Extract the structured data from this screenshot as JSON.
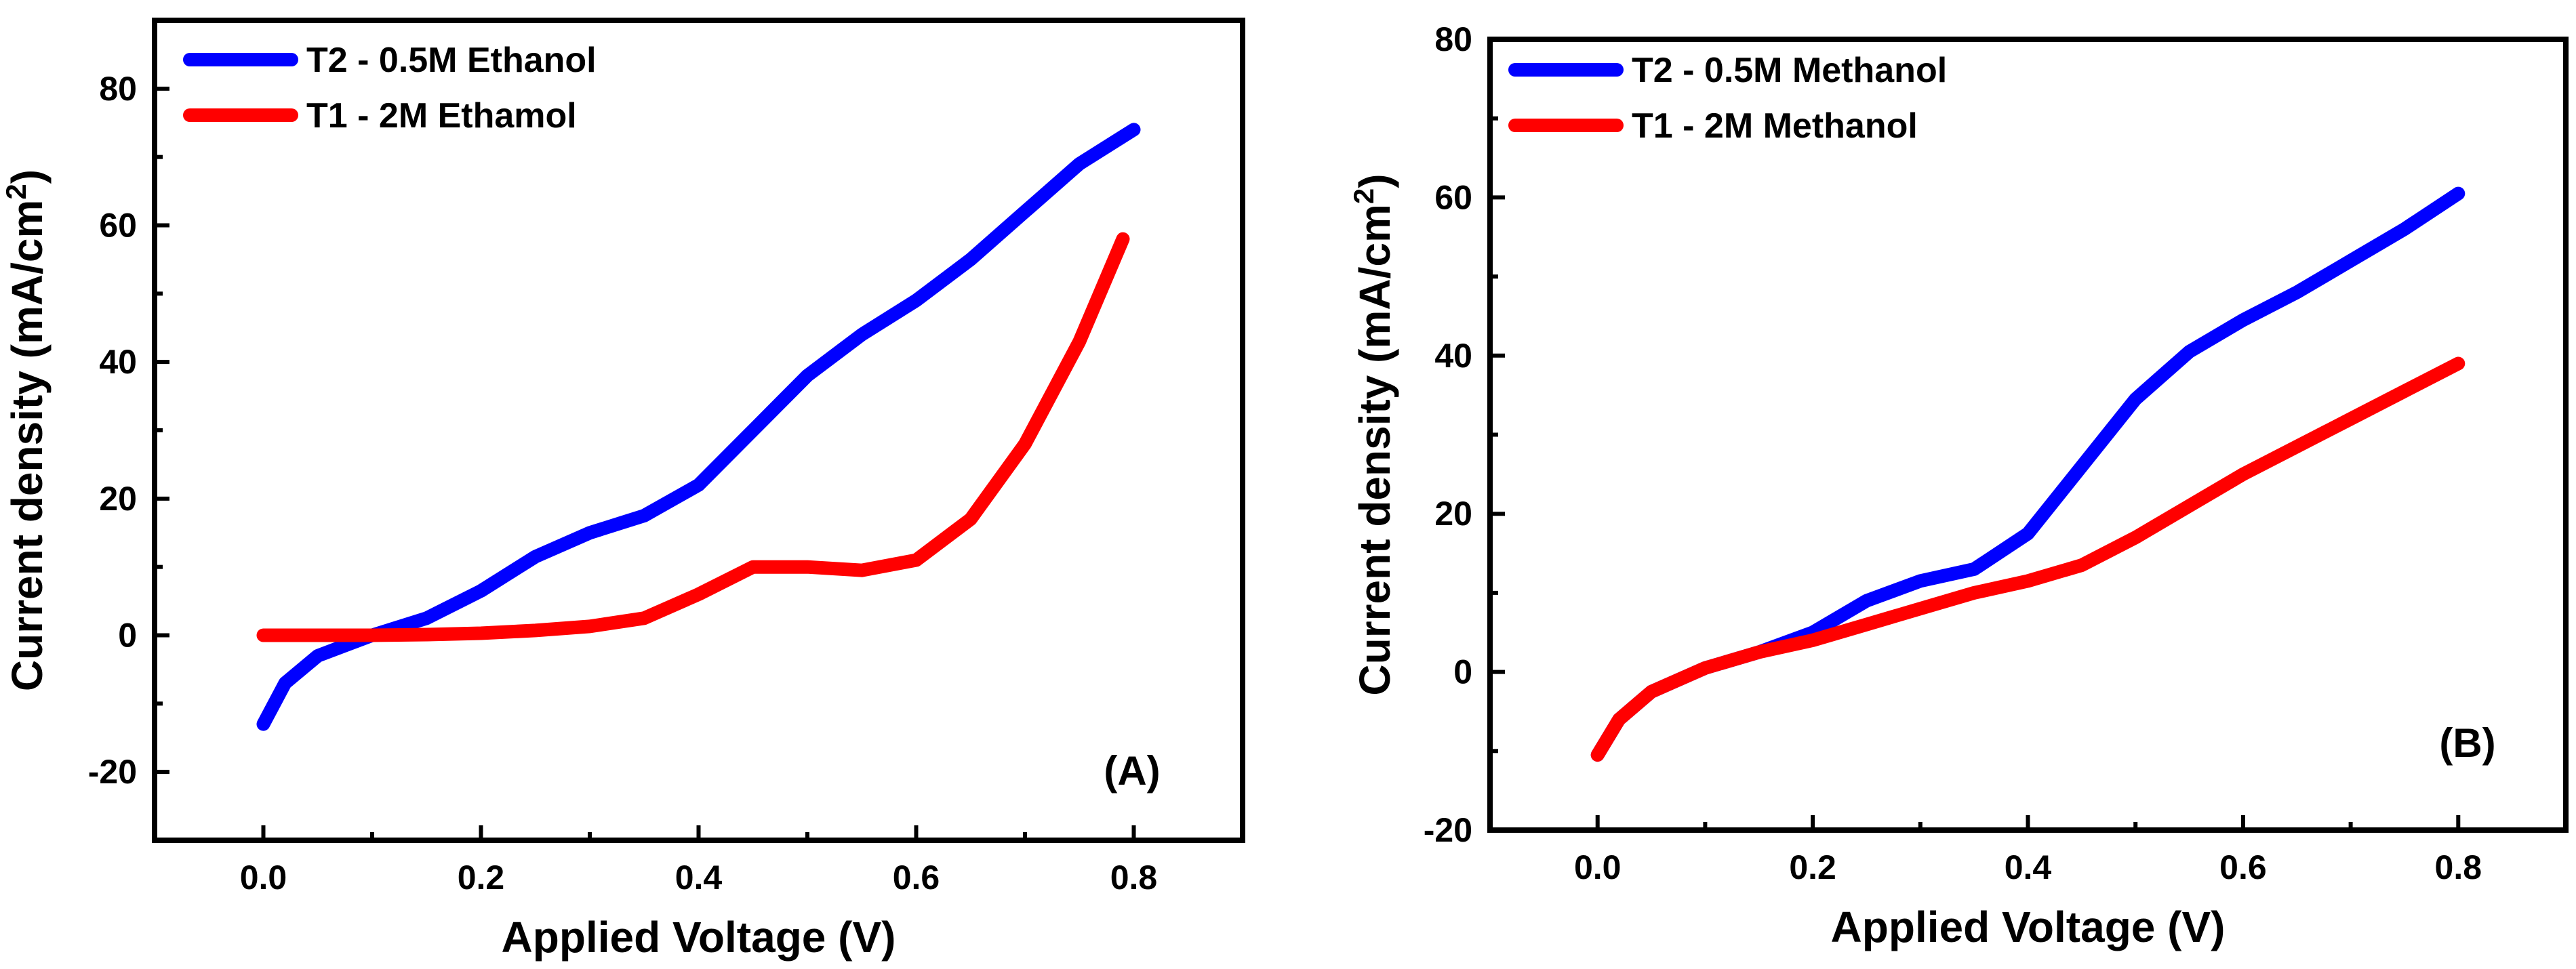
{
  "chart_data": [
    {
      "type": "line",
      "panel_label": "(A)",
      "xlabel": "Applied Voltage (V)",
      "ylabel": "Current density (mA/cm",
      "ylabel_sup": "2",
      "ylabel_close": ")",
      "xlim": [
        -0.1,
        0.9
      ],
      "ylim": [
        -30,
        90
      ],
      "xticks": [
        0.0,
        0.2,
        0.4,
        0.6,
        0.8
      ],
      "xtick_labels": [
        "0.0",
        "0.2",
        "0.4",
        "0.6",
        "0.8"
      ],
      "yticks": [
        -20,
        0,
        20,
        40,
        60,
        80
      ],
      "ytick_labels": [
        "-20",
        "0",
        "20",
        "40",
        "60",
        "80"
      ],
      "series": [
        {
          "name": "T2 - 0.5M Ethanol",
          "color": "#0000ff",
          "x": [
            0.0,
            0.02,
            0.05,
            0.1,
            0.15,
            0.2,
            0.25,
            0.3,
            0.35,
            0.4,
            0.45,
            0.5,
            0.55,
            0.6,
            0.65,
            0.7,
            0.75,
            0.8
          ],
          "y": [
            -13,
            -7,
            -3,
            0,
            2.5,
            6.5,
            11.5,
            15,
            17.5,
            22,
            30,
            38,
            44,
            49,
            55,
            62,
            69,
            74
          ]
        },
        {
          "name": "T1 - 2M Ethamol",
          "color": "#ff0000",
          "x": [
            0.0,
            0.05,
            0.1,
            0.15,
            0.2,
            0.25,
            0.3,
            0.35,
            0.4,
            0.45,
            0.5,
            0.55,
            0.6,
            0.65,
            0.7,
            0.75,
            0.79
          ],
          "y": [
            0,
            0,
            0,
            0.1,
            0.3,
            0.7,
            1.3,
            2.5,
            6,
            10,
            10,
            9.5,
            11,
            17,
            28,
            43,
            58
          ]
        }
      ]
    },
    {
      "type": "line",
      "panel_label": "(B)",
      "xlabel": "Applied Voltage (V)",
      "ylabel": "Current density (mA/cm",
      "ylabel_sup": "2",
      "ylabel_close": ")",
      "xlim": [
        -0.1,
        0.9
      ],
      "ylim": [
        -20,
        80
      ],
      "xticks": [
        0.0,
        0.2,
        0.4,
        0.6,
        0.8
      ],
      "xtick_labels": [
        "0.0",
        "0.2",
        "0.4",
        "0.6",
        "0.8"
      ],
      "yticks": [
        -20,
        0,
        20,
        40,
        60,
        80
      ],
      "ytick_labels": [
        "-20",
        "0",
        "20",
        "40",
        "60",
        "80"
      ],
      "series": [
        {
          "name": "T2 - 0.5M Methanol",
          "color": "#0000ff",
          "x": [
            0.0,
            0.02,
            0.05,
            0.1,
            0.15,
            0.2,
            0.25,
            0.3,
            0.35,
            0.4,
            0.45,
            0.5,
            0.55,
            0.6,
            0.65,
            0.7,
            0.75,
            0.8
          ],
          "y": [
            -10.5,
            -6,
            -2.5,
            0.5,
            2.5,
            5,
            9,
            11.5,
            13,
            17.5,
            26,
            34.5,
            40.5,
            44.5,
            48,
            52,
            56,
            60.5
          ]
        },
        {
          "name": "T1 - 2M Methanol",
          "color": "#ff0000",
          "x": [
            0.0,
            0.02,
            0.05,
            0.1,
            0.15,
            0.2,
            0.25,
            0.3,
            0.35,
            0.4,
            0.45,
            0.5,
            0.55,
            0.6,
            0.65,
            0.7,
            0.75,
            0.8
          ],
          "y": [
            -10.5,
            -6,
            -2.5,
            0.5,
            2.5,
            4,
            6,
            8,
            10,
            11.5,
            13.5,
            17,
            21,
            25,
            28.5,
            32,
            35.5,
            39
          ]
        }
      ]
    }
  ]
}
